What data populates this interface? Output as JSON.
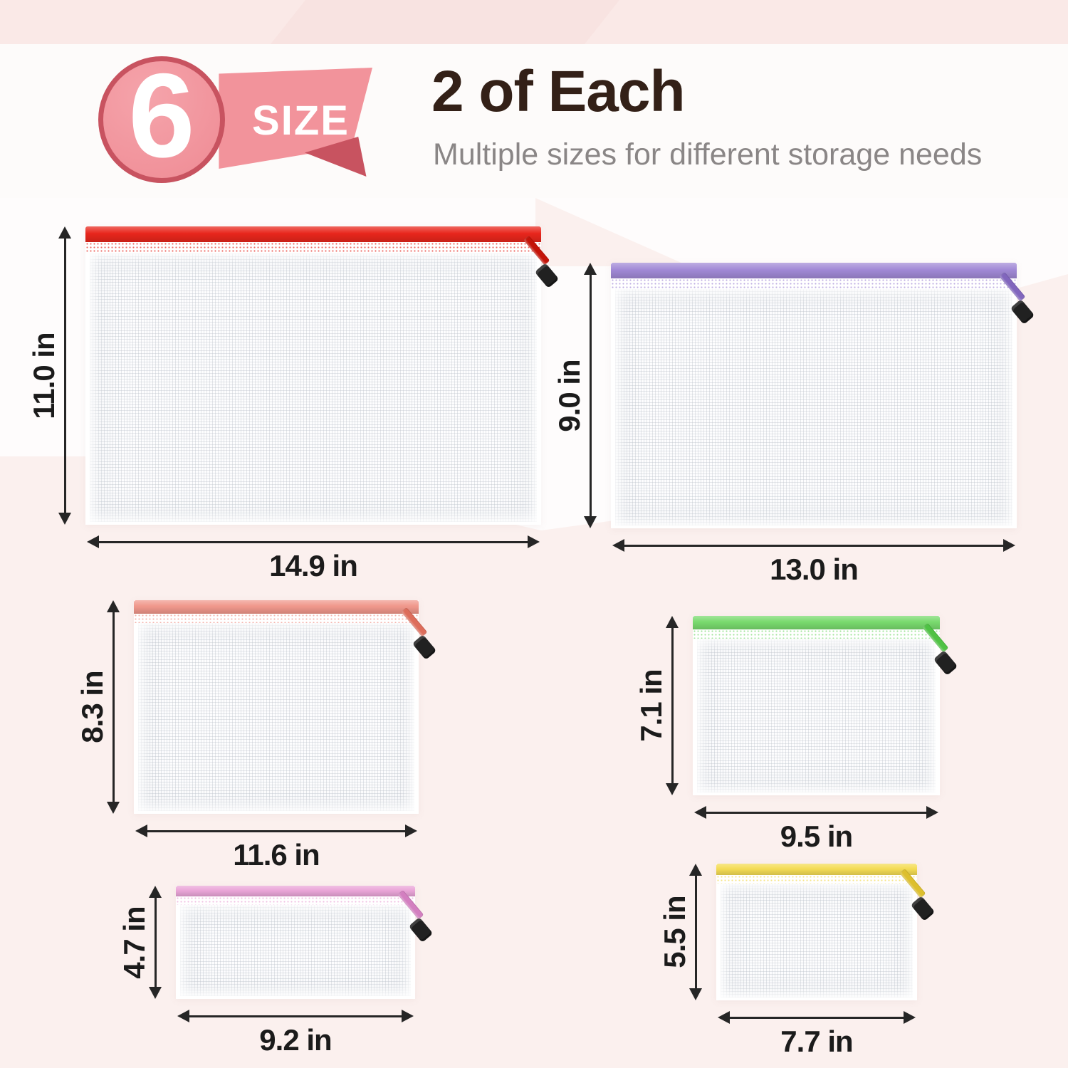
{
  "badge": {
    "count": "6",
    "label": "SIZE"
  },
  "header": {
    "title": "2 of Each",
    "subtitle": "Multiple sizes for different storage needs"
  },
  "bags": [
    {
      "color_name": "red",
      "zipper_color": "#e8261c",
      "zipper_dark": "#c41409",
      "height_label": "11.0 in",
      "width_label": "14.9 in"
    },
    {
      "color_name": "purple",
      "zipper_color": "#a189d6",
      "zipper_dark": "#8166bd",
      "height_label": "9.0 in",
      "width_label": "13.0 in"
    },
    {
      "color_name": "coral",
      "zipper_color": "#f0978b",
      "zipper_dark": "#dd6d5b",
      "height_label": "8.3 in",
      "width_label": "11.6 in"
    },
    {
      "color_name": "green",
      "zipper_color": "#79da6e",
      "zipper_dark": "#4fc244",
      "height_label": "7.1 in",
      "width_label": "9.5 in"
    },
    {
      "color_name": "orchid",
      "zipper_color": "#eaa5d8",
      "zipper_dark": "#d37fc0",
      "height_label": "4.7 in",
      "width_label": "9.2 in"
    },
    {
      "color_name": "yellow",
      "zipper_color": "#f4dc55",
      "zipper_dark": "#ddbf2e",
      "height_label": "5.5 in",
      "width_label": "7.7 in"
    }
  ],
  "colors": {
    "accent": "#f2939b",
    "accent_dark": "#c85360",
    "title_text": "#332017",
    "subtitle_text": "#8a8686",
    "dimension_text": "#1b1b1b",
    "arrow": "#262626",
    "pull_tab": "#212121"
  }
}
